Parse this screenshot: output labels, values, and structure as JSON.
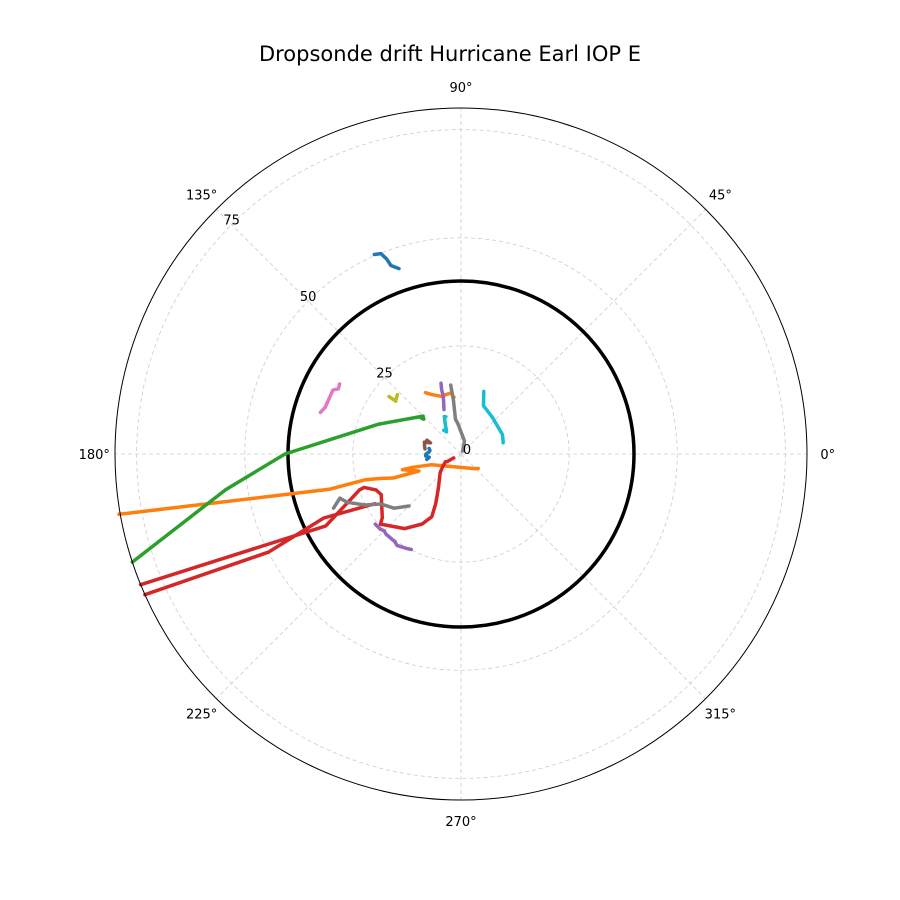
{
  "chart_data": {
    "type": "polar-line",
    "title": "Dropsonde drift Hurricane Earl IOP E",
    "theta_ticks": [
      {
        "deg": 0,
        "label": "0°"
      },
      {
        "deg": 45,
        "label": "45°"
      },
      {
        "deg": 90,
        "label": "90°"
      },
      {
        "deg": 135,
        "label": "135°"
      },
      {
        "deg": 180,
        "label": "180°"
      },
      {
        "deg": 225,
        "label": "225°"
      },
      {
        "deg": 270,
        "label": "270°"
      },
      {
        "deg": 315,
        "label": "315°"
      }
    ],
    "r_ticks": [
      {
        "value": 0,
        "label": "0"
      },
      {
        "value": 25,
        "label": "25"
      },
      {
        "value": 50,
        "label": "50"
      },
      {
        "value": 75,
        "label": "75"
      }
    ],
    "r_max": 80,
    "r_label_angle_deg": 135,
    "grid": true,
    "reference_circle": {
      "r": 40,
      "color": "#000000"
    },
    "series": [
      {
        "color": "#1f77b4",
        "points": [
          [
            50.3,
            113.5
          ],
          [
            49.9,
            111.8
          ],
          [
            48.3,
            110.9
          ],
          [
            46.5,
            110.4
          ],
          [
            45.2,
            108.5
          ]
        ]
      },
      {
        "color": "#1f77b4",
        "points": [
          [
            7.5,
            170
          ],
          [
            7.2,
            174
          ],
          [
            7.5,
            177
          ],
          [
            8.1,
            180
          ],
          [
            8.2,
            183
          ],
          [
            7.4,
            186
          ],
          [
            8.0,
            189
          ]
        ]
      },
      {
        "color": "#ff7f0e",
        "points": [
          [
            16.4,
            120
          ],
          [
            15.5,
            117
          ],
          [
            14.1,
            109
          ],
          [
            14.3,
            99.5
          ],
          [
            13.2,
            97
          ]
        ]
      },
      {
        "color": "#ff7f0e",
        "points": [
          [
            5.2,
            320
          ],
          [
            4.8,
            315
          ],
          [
            7.2,
            200
          ],
          [
            11.4,
            195.5
          ],
          [
            14.0,
            195
          ],
          [
            10.5,
            202
          ],
          [
            16.6,
            199.5
          ],
          [
            19.3,
            197
          ],
          [
            23.1,
            195
          ],
          [
            31.5,
            195
          ],
          [
            80.3,
            190
          ]
        ]
      },
      {
        "color": "#2ca02c",
        "points": [
          [
            12.5,
            138
          ],
          [
            11.8,
            137
          ],
          [
            12.4,
            135
          ],
          [
            20.2,
            160
          ],
          [
            40.7,
            180
          ],
          [
            55.0,
            188.6
          ],
          [
            80.0,
            198.2
          ]
        ]
      },
      {
        "color": "#d62728",
        "points": [
          [
            1.9,
            208
          ],
          [
            3.6,
            209
          ],
          [
            4.0,
            206
          ],
          [
            5.2,
            215
          ],
          [
            6.5,
            222
          ],
          [
            9.3,
            236
          ],
          [
            11.0,
            240
          ],
          [
            12.9,
            243
          ],
          [
            16.0,
            245
          ],
          [
            18.5,
            241
          ],
          [
            21.6,
            233
          ],
          [
            24.7,
            221
          ],
          [
            23.4,
            219
          ],
          [
            20.7,
            207
          ],
          [
            21.3,
            203
          ],
          [
            23.7,
            199
          ],
          [
            24.9,
            199.5
          ],
          [
            35.4,
            208
          ],
          [
            80.0,
            202.2
          ]
        ]
      },
      {
        "color": "#d62728",
        "points": [
          [
            23.0,
            210
          ],
          [
            35.0,
            205
          ],
          [
            50.0,
            207
          ],
          [
            80.0,
            204.0
          ]
        ]
      },
      {
        "color": "#9467bd",
        "points": [
          [
            17.0,
            105.8
          ],
          [
            15.4,
            106.8
          ],
          [
            14.0,
            107
          ],
          [
            12.4,
            108.8
          ],
          [
            11.0,
            111
          ]
        ]
      },
      {
        "color": "#9467bd",
        "points": [
          [
            24.9,
            242.5
          ],
          [
            25.2,
            240
          ],
          [
            25.8,
            235
          ],
          [
            25.4,
            233
          ],
          [
            25.4,
            227
          ],
          [
            25.1,
            225
          ],
          [
            25.5,
            223
          ],
          [
            25.6,
            219.3
          ]
        ]
      },
      {
        "color": "#8c564b",
        "points": [
          [
            8.5,
            157.9
          ],
          [
            7.5,
            160
          ],
          [
            8.9,
            162
          ],
          [
            8.6,
            168.5
          ],
          [
            8.4,
            172
          ]
        ]
      },
      {
        "color": "#e377c2",
        "points": [
          [
            33.9,
            163.5
          ],
          [
            33.2,
            161
          ],
          [
            33.1,
            153.5
          ],
          [
            32.1,
            152
          ],
          [
            32.4,
            150
          ]
        ]
      },
      {
        "color": "#7f7f7f",
        "points": [
          [
            16.1,
            98.5
          ],
          [
            12.6,
            98
          ],
          [
            8.1,
            99
          ],
          [
            7.1,
            96
          ],
          [
            3.1,
            75
          ],
          [
            0.8,
            60
          ]
        ]
      },
      {
        "color": "#7f7f7f",
        "points": [
          [
            32.0,
            203
          ],
          [
            29.8,
            200
          ],
          [
            28.6,
            203
          ],
          [
            25.1,
            208
          ],
          [
            21.8,
            212
          ],
          [
            19.9,
            219
          ],
          [
            17.0,
            225
          ]
        ]
      },
      {
        "color": "#bcbd22",
        "points": [
          [
            21.3,
            141.4
          ],
          [
            19.4,
            141
          ],
          [
            19.9,
            138.3
          ],
          [
            20.1,
            137
          ]
        ]
      },
      {
        "color": "#17becf",
        "points": [
          [
            15.4,
            70
          ],
          [
            12.3,
            65
          ],
          [
            11.2,
            50
          ],
          [
            10.6,
            25
          ],
          [
            10.1,
            15
          ]
        ]
      },
      {
        "color": "#17becf",
        "points": [
          [
            6.8,
            126
          ],
          [
            6.1,
            123
          ],
          [
            8.1,
            117
          ],
          [
            9.5,
            114
          ],
          [
            9.3,
            112
          ]
        ]
      }
    ]
  }
}
